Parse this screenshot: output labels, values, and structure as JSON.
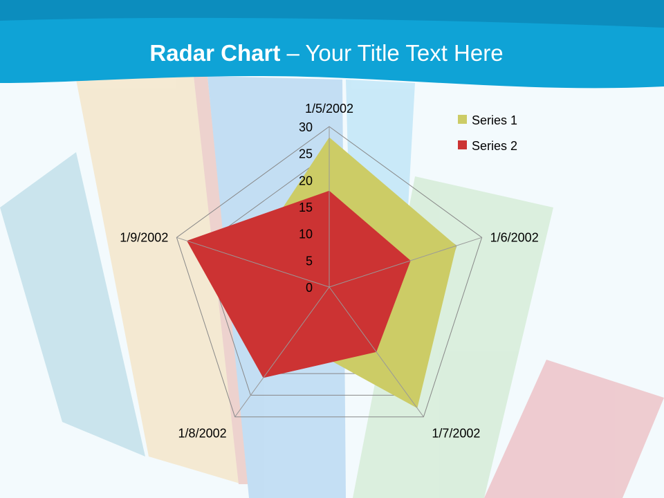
{
  "slide": {
    "title_bold": "Radar Chart",
    "title_rest": " – Your Title Text Here"
  },
  "chart_data": {
    "type": "radar",
    "categories": [
      "1/5/2002",
      "1/6/2002",
      "1/7/2002",
      "1/8/2002",
      "1/9/2002"
    ],
    "series": [
      {
        "name": "Series 1",
        "values": [
          28,
          25,
          28,
          12,
          16
        ],
        "color": "#cccc66"
      },
      {
        "name": "Series 2",
        "values": [
          18,
          16,
          15,
          21,
          28
        ],
        "color": "#cc3333"
      }
    ],
    "rlim": [
      0,
      30
    ],
    "ticks": [
      "0",
      "5",
      "10",
      "15",
      "20",
      "25",
      "30"
    ],
    "legend": "top-right",
    "grid": true
  }
}
